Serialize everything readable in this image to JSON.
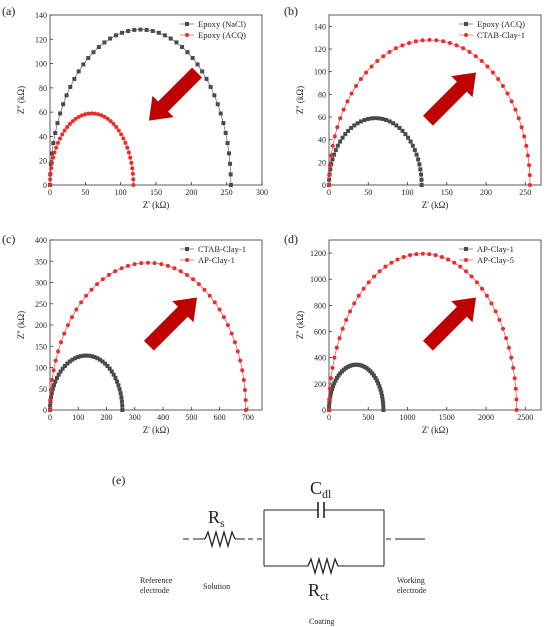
{
  "chart_data": [
    {
      "type": "scatter",
      "panel_label": "(a)",
      "xlabel": "Z' (kΩ)",
      "ylabel": "Z'' (kΩ)",
      "xlim": [
        0,
        300
      ],
      "ylim": [
        0,
        140
      ],
      "xticks": [
        0,
        50,
        100,
        150,
        200,
        250,
        300
      ],
      "yticks": [
        0,
        20,
        40,
        60,
        80,
        100,
        120,
        140
      ],
      "legend_position": "top-right",
      "arrow": "down-left",
      "series": [
        {
          "name": "Epoxy (NaCl)",
          "marker": "square",
          "color": "#4a4a4a",
          "start": 0,
          "diameter": 256,
          "n_points": 46
        },
        {
          "name": "Epoxy (ACQ)",
          "marker": "circle",
          "color": "#ee2b2b",
          "start": 0,
          "diameter": 118,
          "n_points": 40
        }
      ]
    },
    {
      "type": "scatter",
      "panel_label": "(b)",
      "xlabel": "Z' (kΩ)",
      "ylabel": "Z'' (kΩ)",
      "xlim": [
        0,
        270
      ],
      "ylim": [
        0,
        150
      ],
      "xticks": [
        0,
        50,
        100,
        150,
        200,
        250
      ],
      "yticks": [
        0,
        20,
        40,
        60,
        80,
        100,
        120,
        140
      ],
      "legend_position": "top-right",
      "arrow": "up-right",
      "series": [
        {
          "name": "Epoxy (ACQ)",
          "marker": "square",
          "color": "#4a4a4a",
          "start": 0,
          "diameter": 118,
          "n_points": 40
        },
        {
          "name": "CTAB-Clay-1",
          "marker": "circle",
          "color": "#ee2b2b",
          "start": 0,
          "diameter": 256,
          "n_points": 46
        }
      ]
    },
    {
      "type": "scatter",
      "panel_label": "(c)",
      "xlabel": "Z' (kΩ)",
      "ylabel": "Z'' (kΩ)",
      "xlim": [
        0,
        750
      ],
      "ylim": [
        0,
        400
      ],
      "xticks": [
        0,
        100,
        200,
        300,
        400,
        500,
        600,
        700
      ],
      "yticks": [
        0,
        50,
        100,
        150,
        200,
        250,
        300,
        350,
        400
      ],
      "legend_position": "top-right",
      "arrow": "up-right",
      "series": [
        {
          "name": "CTAB-Clay-1",
          "marker": "square",
          "color": "#4a4a4a",
          "start": 0,
          "diameter": 256,
          "n_points": 40
        },
        {
          "name": "AP-Clay-1",
          "marker": "circle",
          "color": "#ee2b2b",
          "start": 0,
          "diameter": 693,
          "n_points": 46
        }
      ]
    },
    {
      "type": "scatter",
      "panel_label": "(d)",
      "xlabel": "Z' (kΩ)",
      "ylabel": "Z'' (kΩ)",
      "xlim": [
        0,
        2700
      ],
      "ylim": [
        0,
        1300
      ],
      "xticks": [
        0,
        500,
        1000,
        1500,
        2000,
        2500
      ],
      "yticks": [
        0,
        200,
        400,
        600,
        800,
        1000,
        1200
      ],
      "legend_position": "top-right",
      "arrow": "up-right",
      "series": [
        {
          "name": "AP-Clay-1",
          "marker": "square",
          "color": "#4a4a4a",
          "start": 0,
          "diameter": 693,
          "n_points": 40
        },
        {
          "name": "AP-Clay-5",
          "marker": "circle",
          "color": "#ee2b2b",
          "start": 0,
          "diameter": 2390,
          "n_points": 46
        }
      ]
    }
  ],
  "circuit": {
    "panel_label": "(e)",
    "rs_main": "R",
    "rs_sub": "s",
    "cdl_main": "C",
    "cdl_sub": "dl",
    "rct_main": "R",
    "rct_sub": "ct",
    "reference_line1": "Reference",
    "reference_line2": "electrode",
    "solution": "Solution",
    "working_line1": "Working",
    "working_line2": "electrode",
    "coating": "Coating"
  },
  "colors": {
    "arrow": "#c00000",
    "gray_series": "#4a4a4a",
    "red_series": "#ee2b2b",
    "axis": "#333333"
  }
}
